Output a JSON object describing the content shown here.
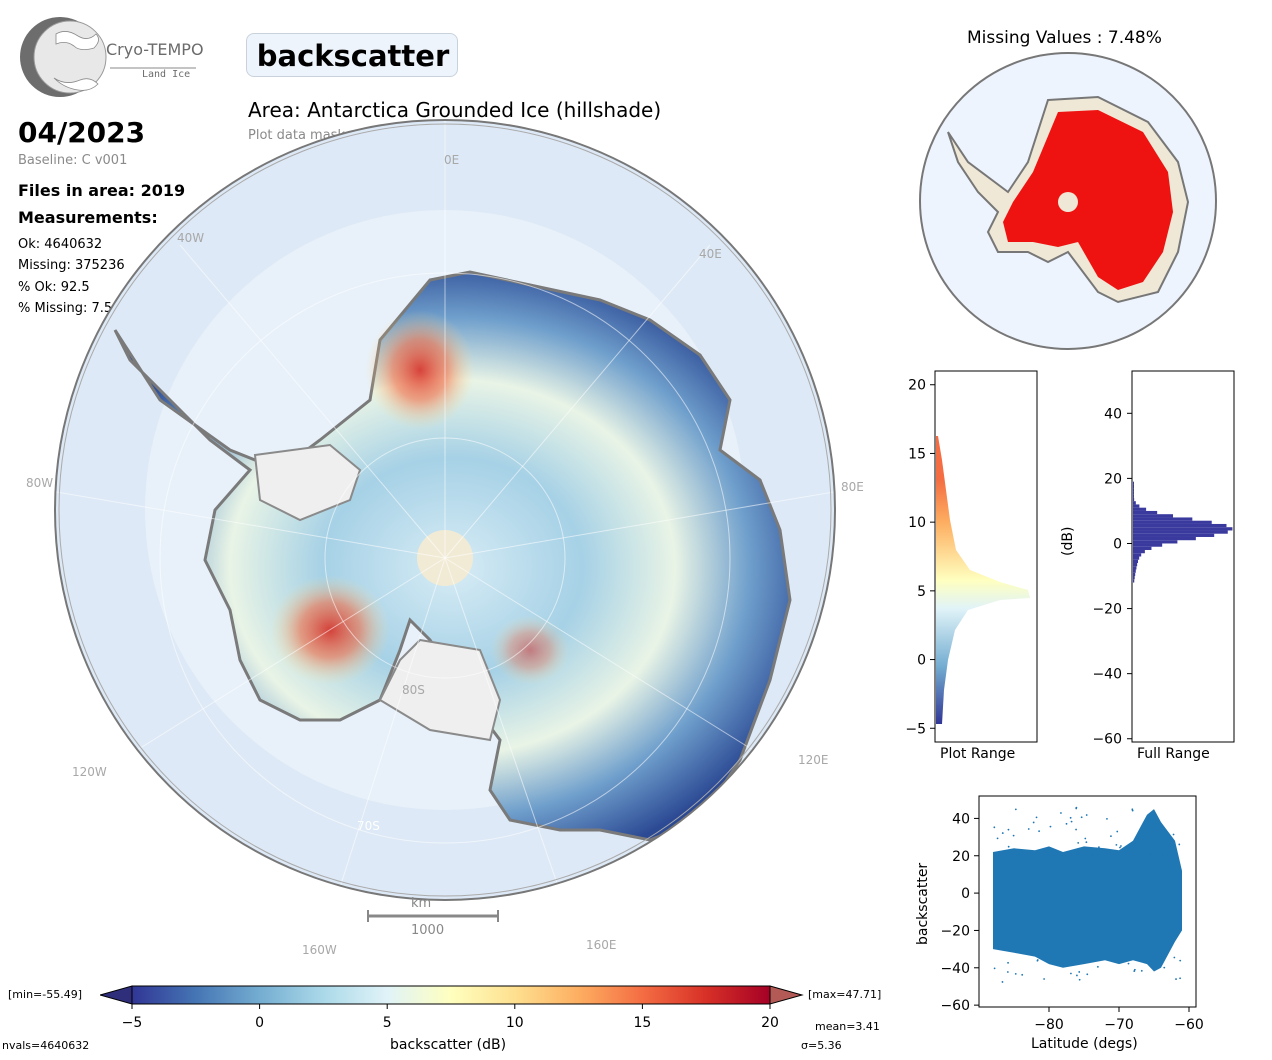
{
  "logo": {
    "name": "Cryo-TEMPO",
    "sub": "Land Ice"
  },
  "title": "backscatter",
  "area": "Area: Antarctica Grounded Ice (hillshade)",
  "mask": "Plot data mask: grounded ice",
  "date": "04/2023",
  "baseline": "Baseline: C v001",
  "files": "Files in area: 2019",
  "measurements_label": "Measurements:",
  "stats": {
    "ok": "Ok: 4640632",
    "missing": "Missing: 375236",
    "pct_ok": "% Ok: 92.5",
    "pct_missing": "% Missing: 7.5"
  },
  "map_grid_labels": {
    "lon_0e": "0E",
    "lon_40w": "40W",
    "lon_40e": "40E",
    "lon_80w": "80W",
    "lon_80e": "80E",
    "lon_120w": "120W",
    "lon_120e": "120E",
    "lon_160w": "160W",
    "lon_160e": "160E",
    "lat_80s": "80S",
    "lat_70s": "70S"
  },
  "scalebar": {
    "unit": "km",
    "value": "1000"
  },
  "missing_title": "Missing Values : 7.48%",
  "colorbar": {
    "min_label": "[min=-55.49]",
    "max_label": "[max=47.71]",
    "ticks": [
      "−5",
      "0",
      "5",
      "10",
      "15",
      "20"
    ],
    "label": "backscatter (dB)",
    "mean": "mean=3.41",
    "sigma": "σ=5.36",
    "nvals": "nvals=4640632",
    "range": [
      -5,
      20
    ],
    "colors": [
      "#313695",
      "#4575b4",
      "#74add1",
      "#abd9e9",
      "#e0f3f8",
      "#ffffbf",
      "#fee090",
      "#fdae61",
      "#f46d43",
      "#d73027",
      "#a50026"
    ]
  },
  "hist_plot": {
    "xlabel": "Plot Range",
    "yticks": [
      "−5",
      "0",
      "5",
      "10",
      "15",
      "20"
    ],
    "ylim": [
      -6,
      21
    ]
  },
  "hist_full": {
    "xlabel": "Full Range",
    "ylabel": "(dB)",
    "yticks": [
      "−60",
      "−40",
      "−20",
      "0",
      "20",
      "40"
    ],
    "ylim": [
      -61,
      53
    ],
    "color": "#3a3a9e"
  },
  "chart_data": {
    "type": "scatter",
    "title": "",
    "xlabel": "Latitude (degs)",
    "ylabel": "backscatter",
    "xticks": [
      "−80",
      "−70",
      "−60"
    ],
    "yticks": [
      "−60",
      "−40",
      "−20",
      "0",
      "20",
      "40"
    ],
    "xlim": [
      -90,
      -59
    ],
    "ylim": [
      -61,
      52
    ],
    "color": "#1f77b4",
    "x": [
      -88,
      -85,
      -82,
      -80,
      -78,
      -75,
      -72,
      -70,
      -68,
      -66,
      -65,
      -64,
      -62,
      -61
    ],
    "y_upper": [
      22,
      24,
      23,
      25,
      22,
      25,
      24,
      23,
      28,
      42,
      45,
      38,
      28,
      12
    ],
    "y_lower": [
      -30,
      -32,
      -34,
      -38,
      -40,
      -38,
      -36,
      -38,
      -36,
      -38,
      -42,
      -40,
      -26,
      -20
    ]
  }
}
